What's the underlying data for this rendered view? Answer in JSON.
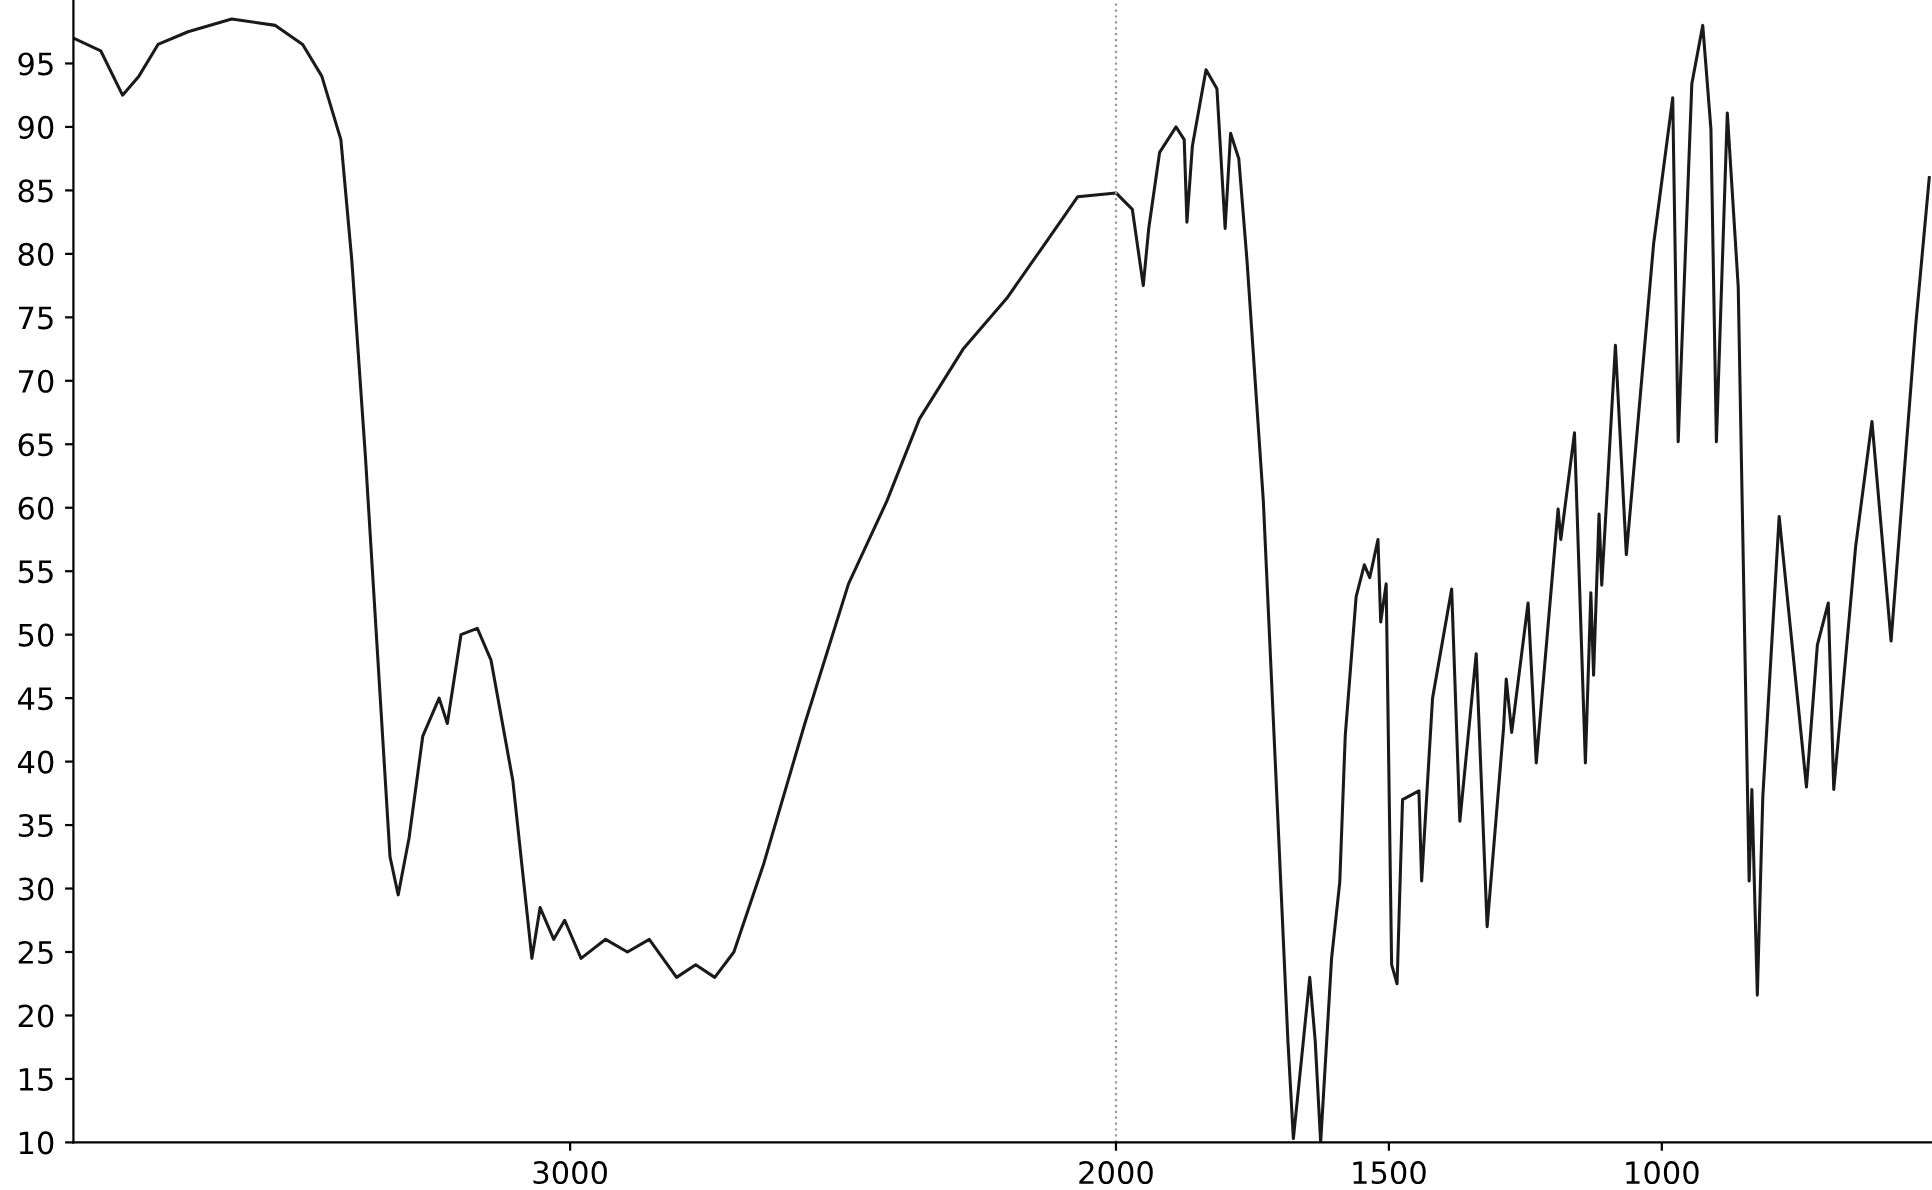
{
  "chart_data": {
    "type": "line",
    "x": [
      3910,
      3860,
      3820,
      3790,
      3755,
      3700,
      3620,
      3540,
      3490,
      3455,
      3420,
      3400,
      3375,
      3355,
      3330,
      3315,
      3295,
      3270,
      3240,
      3225,
      3200,
      3170,
      3145,
      3105,
      3070,
      3055,
      3030,
      3010,
      2980,
      2935,
      2895,
      2855,
      2805,
      2770,
      2735,
      2700,
      2645,
      2570,
      2490,
      2420,
      2360,
      2280,
      2200,
      2135,
      2070,
      2000,
      1970,
      1950,
      1940,
      1920,
      1890,
      1875,
      1870,
      1860,
      1835,
      1815,
      1800,
      1790,
      1775,
      1760,
      1730,
      1705,
      1685,
      1675,
      1660,
      1645,
      1635,
      1625,
      1605,
      1590,
      1580,
      1560,
      1545,
      1535,
      1520,
      1515,
      1505,
      1495,
      1485,
      1475,
      1445,
      1440,
      1420,
      1385,
      1370,
      1340,
      1320,
      1290,
      1285,
      1275,
      1245,
      1230,
      1190,
      1185,
      1160,
      1140,
      1130,
      1125,
      1115,
      1110,
      1085,
      1065,
      1015,
      980,
      970,
      945,
      925,
      910,
      900,
      880,
      860,
      840,
      835,
      825,
      815,
      785,
      735,
      715,
      695,
      685,
      645,
      615,
      580,
      535,
      510
    ],
    "series": [
      {
        "color": "#1a1a1a",
        "values": [
          97,
          96,
          92.5,
          94,
          96.5,
          97.5,
          98.5,
          98,
          96.5,
          94,
          89,
          79.5,
          64,
          50,
          32.5,
          29.5,
          34,
          42,
          45,
          43,
          50,
          50.5,
          48,
          38.5,
          24.5,
          28.5,
          26,
          27.5,
          24.5,
          26,
          25,
          26,
          23,
          24,
          23,
          25,
          32,
          43,
          54,
          60.5,
          67,
          72.5,
          76.5,
          80.5,
          84.5,
          84.8,
          83.5,
          77.5,
          82,
          88,
          90,
          89,
          82.5,
          88.5,
          94.5,
          93,
          82,
          89.5,
          87.5,
          79.5,
          60.5,
          37,
          18,
          10.3,
          16.6,
          23,
          18,
          10,
          24.5,
          30.5,
          42,
          53,
          55.5,
          54.5,
          57.5,
          51,
          54,
          24,
          22.5,
          37,
          37.7,
          30.6,
          45,
          53.6,
          35.3,
          48.5,
          27,
          42.6,
          46.5,
          42.3,
          52.5,
          39.9,
          59.9,
          57.5,
          65.9,
          39.9,
          53.3,
          46.8,
          59.5,
          53.9,
          72.8,
          56.3,
          80.8,
          92.3,
          65.2,
          93.4,
          98,
          89.8,
          65.2,
          91.1,
          77.4,
          30.6,
          37.8,
          21.6,
          37.2,
          59.3,
          38,
          49.2,
          52.5,
          37.8,
          56.9,
          66.8,
          49.5,
          74.3,
          86
        ]
      }
    ],
    "xlim": [
      3910,
      505
    ],
    "xticks": [
      3000,
      2000,
      1500,
      1000
    ],
    "ylim": [
      10,
      100
    ],
    "yticks": [
      10,
      15,
      20,
      25,
      30,
      35,
      40,
      45,
      50,
      55,
      60,
      65,
      70,
      75,
      80,
      85,
      90,
      95
    ],
    "ref_lines": [
      {
        "axis": "x",
        "value": 2000,
        "color": "#999999",
        "line_style": "dotted"
      }
    ],
    "grid": false,
    "legend": false,
    "marker": "none",
    "line_style": "solid"
  }
}
